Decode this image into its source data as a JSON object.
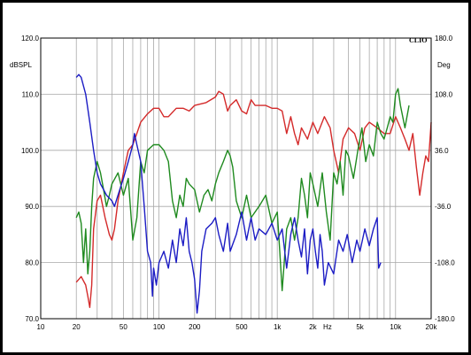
{
  "chart_data": {
    "type": "line",
    "brand": "CLIO",
    "left_unit": "dBSPL",
    "right_unit": "Deg",
    "x_unit": "Hz",
    "x_scale": "log",
    "xlim": [
      10,
      20000
    ],
    "ylim": [
      70,
      120
    ],
    "y2lim": [
      -180,
      180
    ],
    "grid": true,
    "x_ticks": [
      10,
      20,
      50,
      100,
      200,
      500,
      1000,
      2000,
      5000,
      10000,
      20000
    ],
    "x_tick_labels": [
      "10",
      "20",
      "50",
      "100",
      "200",
      "500",
      "1k",
      "2k",
      "5k",
      "10k",
      "20k"
    ],
    "y_ticks": [
      70,
      80,
      90,
      100,
      110,
      120
    ],
    "y_tick_labels": [
      "70.0",
      "80.0",
      "90.0",
      "100.0",
      "110.0",
      "120.0"
    ],
    "y2_ticks": [
      -180,
      -108,
      -36,
      36,
      108,
      180
    ],
    "y2_tick_labels": [
      "-180.0",
      "-108.0",
      "-36.0",
      "36.0",
      "108.0",
      "180.0"
    ],
    "colors": {
      "red": "#d42a2a",
      "green": "#1f8a1f",
      "blue": "#1c1cc4",
      "grid": "#a8a8a8",
      "axis": "#000000"
    },
    "series": [
      {
        "color": "#d42a2a",
        "points": [
          [
            20,
            76.5
          ],
          [
            22,
            77.5
          ],
          [
            24,
            76
          ],
          [
            25,
            74
          ],
          [
            26,
            72
          ],
          [
            27,
            76
          ],
          [
            28,
            86
          ],
          [
            30,
            91
          ],
          [
            32,
            92
          ],
          [
            35,
            88
          ],
          [
            38,
            85
          ],
          [
            40,
            84
          ],
          [
            42,
            86
          ],
          [
            45,
            91
          ],
          [
            50,
            96
          ],
          [
            55,
            100
          ],
          [
            60,
            101
          ],
          [
            65,
            103
          ],
          [
            70,
            105
          ],
          [
            80,
            106.5
          ],
          [
            90,
            107.5
          ],
          [
            100,
            107.5
          ],
          [
            110,
            106
          ],
          [
            120,
            106
          ],
          [
            140,
            107.5
          ],
          [
            160,
            107.5
          ],
          [
            180,
            107
          ],
          [
            200,
            108
          ],
          [
            250,
            108.5
          ],
          [
            300,
            109.5
          ],
          [
            320,
            110.5
          ],
          [
            350,
            110
          ],
          [
            380,
            107
          ],
          [
            400,
            108
          ],
          [
            450,
            109
          ],
          [
            500,
            107
          ],
          [
            550,
            106.5
          ],
          [
            600,
            109
          ],
          [
            650,
            108
          ],
          [
            700,
            108
          ],
          [
            800,
            108
          ],
          [
            900,
            107.5
          ],
          [
            1000,
            107.5
          ],
          [
            1100,
            107
          ],
          [
            1200,
            103
          ],
          [
            1300,
            106
          ],
          [
            1400,
            103
          ],
          [
            1500,
            101
          ],
          [
            1600,
            104
          ],
          [
            1800,
            102
          ],
          [
            2000,
            105
          ],
          [
            2200,
            103
          ],
          [
            2500,
            106
          ],
          [
            2800,
            104
          ],
          [
            3000,
            100
          ],
          [
            3300,
            96
          ],
          [
            3600,
            102
          ],
          [
            4000,
            104
          ],
          [
            4500,
            103
          ],
          [
            5000,
            100
          ],
          [
            5500,
            104
          ],
          [
            6000,
            105
          ],
          [
            7000,
            104
          ],
          [
            8000,
            103
          ],
          [
            9000,
            103
          ],
          [
            10000,
            106
          ],
          [
            11000,
            104
          ],
          [
            12000,
            102
          ],
          [
            13000,
            100
          ],
          [
            14000,
            103
          ],
          [
            15000,
            97
          ],
          [
            16000,
            92
          ],
          [
            17000,
            96
          ],
          [
            18000,
            99
          ],
          [
            19000,
            98
          ],
          [
            20000,
            105
          ]
        ]
      },
      {
        "color": "#1f8a1f",
        "points": [
          [
            20,
            88
          ],
          [
            21,
            89
          ],
          [
            22,
            87
          ],
          [
            23,
            80
          ],
          [
            24,
            86
          ],
          [
            25,
            78
          ],
          [
            26,
            82
          ],
          [
            27,
            90
          ],
          [
            28,
            95
          ],
          [
            30,
            98
          ],
          [
            32,
            96
          ],
          [
            34,
            93
          ],
          [
            36,
            90
          ],
          [
            38,
            92
          ],
          [
            40,
            94
          ],
          [
            45,
            96
          ],
          [
            50,
            92
          ],
          [
            55,
            95
          ],
          [
            60,
            84
          ],
          [
            65,
            88
          ],
          [
            70,
            98
          ],
          [
            75,
            96
          ],
          [
            80,
            100
          ],
          [
            90,
            101
          ],
          [
            100,
            101
          ],
          [
            110,
            100
          ],
          [
            120,
            98
          ],
          [
            130,
            91
          ],
          [
            140,
            88
          ],
          [
            150,
            92
          ],
          [
            160,
            90
          ],
          [
            170,
            95
          ],
          [
            180,
            94
          ],
          [
            200,
            93
          ],
          [
            220,
            89
          ],
          [
            240,
            92
          ],
          [
            260,
            93
          ],
          [
            280,
            91
          ],
          [
            300,
            94
          ],
          [
            320,
            96
          ],
          [
            350,
            98
          ],
          [
            380,
            100
          ],
          [
            400,
            99
          ],
          [
            420,
            97
          ],
          [
            450,
            91
          ],
          [
            500,
            88
          ],
          [
            550,
            92
          ],
          [
            600,
            88
          ],
          [
            700,
            90
          ],
          [
            800,
            92
          ],
          [
            900,
            87
          ],
          [
            1000,
            89
          ],
          [
            1050,
            82
          ],
          [
            1100,
            75
          ],
          [
            1200,
            86
          ],
          [
            1300,
            88
          ],
          [
            1400,
            84
          ],
          [
            1500,
            88
          ],
          [
            1600,
            95
          ],
          [
            1700,
            92
          ],
          [
            1800,
            88
          ],
          [
            1900,
            96
          ],
          [
            2000,
            94
          ],
          [
            2200,
            90
          ],
          [
            2400,
            96
          ],
          [
            2600,
            89
          ],
          [
            2800,
            84
          ],
          [
            3000,
            96
          ],
          [
            3200,
            94
          ],
          [
            3400,
            98
          ],
          [
            3600,
            92
          ],
          [
            3800,
            100
          ],
          [
            4000,
            99
          ],
          [
            4400,
            95
          ],
          [
            4800,
            100
          ],
          [
            5200,
            104
          ],
          [
            5600,
            98
          ],
          [
            6000,
            101
          ],
          [
            6500,
            99
          ],
          [
            7000,
            105
          ],
          [
            7500,
            103
          ],
          [
            8000,
            102
          ],
          [
            8500,
            104
          ],
          [
            9000,
            106
          ],
          [
            9500,
            105
          ],
          [
            10000,
            110
          ],
          [
            10500,
            111
          ],
          [
            11000,
            108
          ],
          [
            12000,
            104
          ],
          [
            13000,
            108
          ]
        ]
      },
      {
        "color": "#1c1cc4",
        "points": [
          [
            20,
            113
          ],
          [
            21,
            113.5
          ],
          [
            22,
            113
          ],
          [
            24,
            110
          ],
          [
            26,
            105
          ],
          [
            28,
            100
          ],
          [
            30,
            96
          ],
          [
            32,
            94
          ],
          [
            34,
            93
          ],
          [
            36,
            92
          ],
          [
            38,
            91.5
          ],
          [
            40,
            91
          ],
          [
            42,
            90
          ],
          [
            45,
            92
          ],
          [
            50,
            95
          ],
          [
            55,
            98
          ],
          [
            60,
            101
          ],
          [
            62,
            103
          ],
          [
            65,
            101
          ],
          [
            70,
            98
          ],
          [
            75,
            90
          ],
          [
            80,
            82
          ],
          [
            85,
            80
          ],
          [
            88,
            74
          ],
          [
            90,
            79
          ],
          [
            95,
            76
          ],
          [
            100,
            80
          ],
          [
            110,
            82
          ],
          [
            120,
            79
          ],
          [
            130,
            84
          ],
          [
            140,
            80
          ],
          [
            150,
            86
          ],
          [
            160,
            83
          ],
          [
            170,
            88
          ],
          [
            180,
            82
          ],
          [
            190,
            80
          ],
          [
            200,
            77
          ],
          [
            210,
            71
          ],
          [
            220,
            75
          ],
          [
            230,
            82
          ],
          [
            250,
            86
          ],
          [
            280,
            87
          ],
          [
            300,
            88
          ],
          [
            320,
            85
          ],
          [
            350,
            82
          ],
          [
            380,
            87
          ],
          [
            400,
            82
          ],
          [
            450,
            85
          ],
          [
            500,
            89
          ],
          [
            550,
            84
          ],
          [
            600,
            88
          ],
          [
            650,
            84
          ],
          [
            700,
            86
          ],
          [
            800,
            85
          ],
          [
            900,
            87
          ],
          [
            1000,
            84
          ],
          [
            1100,
            86
          ],
          [
            1200,
            79
          ],
          [
            1300,
            85
          ],
          [
            1400,
            88
          ],
          [
            1500,
            84
          ],
          [
            1600,
            81
          ],
          [
            1700,
            86
          ],
          [
            1800,
            78
          ],
          [
            1900,
            84
          ],
          [
            2000,
            86
          ],
          [
            2100,
            82
          ],
          [
            2200,
            79
          ],
          [
            2300,
            85
          ],
          [
            2400,
            82
          ],
          [
            2500,
            76
          ],
          [
            2700,
            80
          ],
          [
            3000,
            78
          ],
          [
            3300,
            84
          ],
          [
            3600,
            82
          ],
          [
            3900,
            85
          ],
          [
            4300,
            80
          ],
          [
            4700,
            84
          ],
          [
            5000,
            82
          ],
          [
            5500,
            86
          ],
          [
            6000,
            83
          ],
          [
            6500,
            86
          ],
          [
            7000,
            88
          ],
          [
            7200,
            79
          ],
          [
            7500,
            80
          ]
        ]
      }
    ]
  }
}
